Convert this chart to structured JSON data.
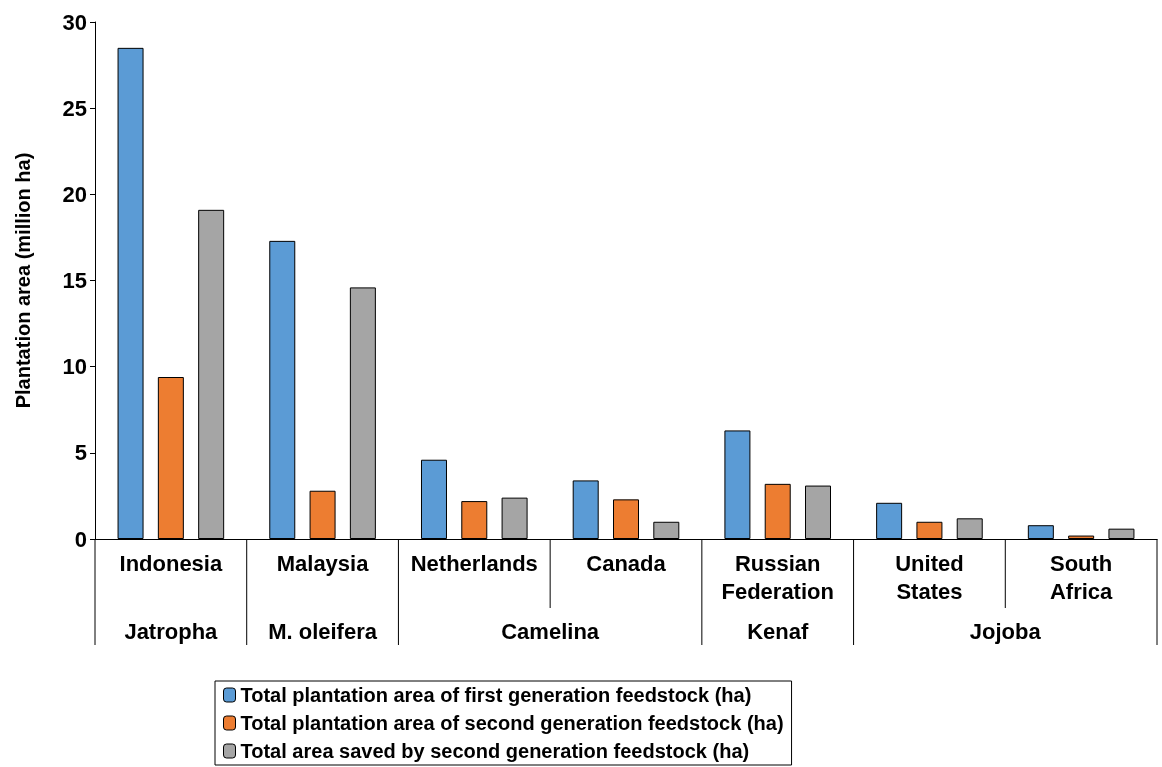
{
  "chart_data": {
    "type": "bar",
    "categories": [
      "Indonesia",
      "Malaysia",
      "Netherlands",
      "Canada",
      "Russian Federation",
      "United States",
      "South Africa"
    ],
    "series": [
      {
        "name": "Total plantation area of first generation feedstock (ha)",
        "color": "#5b9bd5",
        "values": [
          28.5,
          17.3,
          4.6,
          3.4,
          6.3,
          2.1,
          0.8
        ]
      },
      {
        "name": "Total plantation area of second generation feedstock (ha)",
        "color": "#ed7d31",
        "values": [
          9.4,
          2.8,
          2.2,
          2.3,
          3.2,
          1.0,
          0.2
        ]
      },
      {
        "name": "Total area saved by second generation feedstock (ha)",
        "color": "#a5a5a5",
        "values": [
          19.1,
          14.6,
          2.4,
          1.0,
          3.1,
          1.2,
          0.6
        ]
      }
    ],
    "annotations": [
      "Jatropha",
      "M. oleifera",
      "Camelina",
      "Kenaf",
      "Jojoba"
    ],
    "ylabel": "Plantation area (million ha)",
    "ylim": [
      0,
      30
    ],
    "yticks": [
      0,
      5,
      10,
      15,
      20,
      25,
      30
    ],
    "grid": false,
    "legend": "bottom"
  }
}
